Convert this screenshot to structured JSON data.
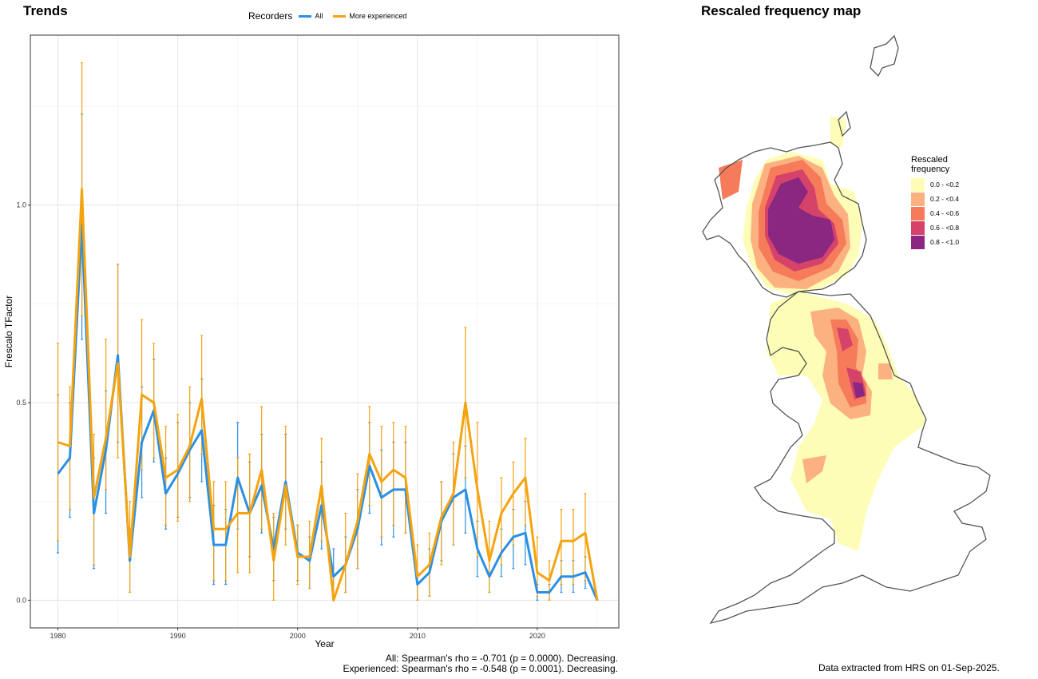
{
  "titles": {
    "trends": "Trends",
    "map": "Rescaled frequency map"
  },
  "legend": {
    "title": "Recorders",
    "items": [
      {
        "label": "All",
        "color": "#2b8fe6"
      },
      {
        "label": "More experienced",
        "color": "#f5a30e"
      }
    ]
  },
  "stats": {
    "all": "All: Spearman's rho = -0.701 (p = 0.0000). Decreasing.",
    "experienced": "Experienced: Spearman's rho = -0.548 (p = 0.0001). Decreasing."
  },
  "source": "Data extracted from HRS on 01-Sep-2025.",
  "chart_data": {
    "type": "line",
    "xlabel": "Year",
    "ylabel": "Frescalo TFactor",
    "xlim": [
      1977.7,
      2026.8
    ],
    "ylim": [
      -0.07,
      1.43
    ],
    "xticks": [
      1980,
      1990,
      2000,
      2010,
      2020
    ],
    "yticks": [
      0.0,
      0.5,
      1.0
    ],
    "ytick_labels": [
      "0.0",
      "0.5",
      "1.0"
    ],
    "grid": true,
    "legend_position": "top",
    "x": [
      1980,
      1981,
      1982,
      1983,
      1984,
      1985,
      1986,
      1987,
      1988,
      1989,
      1990,
      1991,
      1992,
      1993,
      1994,
      1995,
      1996,
      1997,
      1998,
      1999,
      2000,
      2001,
      2002,
      2003,
      2004,
      2005,
      2006,
      2007,
      2008,
      2009,
      2010,
      2011,
      2012,
      2013,
      2014,
      2015,
      2016,
      2017,
      2018,
      2019,
      2020,
      2021,
      2022,
      2023,
      2024,
      2025
    ],
    "series": [
      {
        "name": "All",
        "color": "#2b8fe6",
        "values": [
          0.32,
          0.36,
          0.95,
          0.22,
          0.38,
          0.62,
          0.1,
          0.4,
          0.48,
          0.27,
          0.32,
          0.38,
          0.43,
          0.14,
          0.14,
          0.31,
          0.22,
          0.29,
          0.13,
          0.3,
          0.12,
          0.1,
          0.24,
          0.06,
          0.09,
          0.18,
          0.34,
          0.26,
          0.28,
          0.28,
          0.04,
          0.07,
          0.2,
          0.26,
          0.28,
          0.13,
          0.06,
          0.12,
          0.16,
          0.17,
          0.02,
          0.02,
          0.06,
          0.06,
          0.07,
          0.0
        ],
        "lower": [
          0.12,
          0.21,
          0.66,
          0.08,
          0.22,
          0.4,
          0.02,
          0.26,
          0.35,
          0.18,
          0.21,
          0.26,
          0.3,
          0.04,
          0.04,
          0.18,
          0.11,
          0.17,
          0.05,
          0.18,
          0.05,
          0.03,
          0.13,
          0.01,
          0.02,
          0.08,
          0.22,
          0.14,
          0.16,
          0.17,
          0.0,
          0.01,
          0.1,
          0.14,
          0.17,
          0.06,
          0.02,
          0.06,
          0.08,
          0.09,
          0.0,
          0.0,
          0.02,
          0.02,
          0.03,
          0.0
        ],
        "upper": [
          0.52,
          0.5,
          1.23,
          0.36,
          0.53,
          0.85,
          0.18,
          0.54,
          0.61,
          0.36,
          0.45,
          0.5,
          0.56,
          0.24,
          0.23,
          0.45,
          0.35,
          0.42,
          0.21,
          0.42,
          0.19,
          0.16,
          0.35,
          0.13,
          0.16,
          0.28,
          0.45,
          0.38,
          0.4,
          0.4,
          0.07,
          0.13,
          0.3,
          0.37,
          0.39,
          0.2,
          0.1,
          0.18,
          0.23,
          0.25,
          0.04,
          0.04,
          0.1,
          0.1,
          0.11,
          0.0
        ]
      },
      {
        "name": "More experienced",
        "color": "#f5a30e",
        "values": [
          0.4,
          0.39,
          1.04,
          0.26,
          0.41,
          0.6,
          0.11,
          0.52,
          0.5,
          0.31,
          0.33,
          0.39,
          0.51,
          0.18,
          0.18,
          0.22,
          0.22,
          0.33,
          0.1,
          0.29,
          0.11,
          0.11,
          0.29,
          0.0,
          0.09,
          0.2,
          0.37,
          0.3,
          0.33,
          0.31,
          0.06,
          0.09,
          0.21,
          0.27,
          0.5,
          0.28,
          0.1,
          0.22,
          0.27,
          0.31,
          0.07,
          0.05,
          0.15,
          0.15,
          0.17,
          0.0
        ],
        "lower": [
          0.15,
          0.23,
          0.72,
          0.09,
          0.28,
          0.36,
          0.02,
          0.33,
          0.36,
          0.19,
          0.2,
          0.25,
          0.37,
          0.05,
          0.05,
          0.07,
          0.07,
          0.18,
          0.0,
          0.14,
          0.04,
          0.03,
          0.15,
          0.0,
          0.02,
          0.08,
          0.24,
          0.16,
          0.19,
          0.17,
          0.0,
          0.01,
          0.09,
          0.14,
          0.31,
          0.11,
          0.02,
          0.09,
          0.14,
          0.19,
          0.01,
          0.0,
          0.04,
          0.04,
          0.05,
          0.0
        ],
        "upper": [
          0.65,
          0.54,
          1.36,
          0.42,
          0.66,
          0.85,
          0.25,
          0.71,
          0.65,
          0.44,
          0.47,
          0.54,
          0.67,
          0.3,
          0.3,
          0.36,
          0.37,
          0.49,
          0.22,
          0.44,
          0.19,
          0.2,
          0.41,
          0.08,
          0.22,
          0.32,
          0.49,
          0.44,
          0.45,
          0.44,
          0.14,
          0.17,
          0.3,
          0.4,
          0.69,
          0.45,
          0.2,
          0.31,
          0.35,
          0.41,
          0.16,
          0.1,
          0.23,
          0.23,
          0.27,
          0.0
        ]
      }
    ]
  },
  "map": {
    "legend_title": "Rescaled\nfrequency",
    "classes": [
      {
        "label": "0.0 - <0.2",
        "color": "#fdfdb8"
      },
      {
        "label": "0.2 - <0.4",
        "color": "#fcb180"
      },
      {
        "label": "0.4 - <0.6",
        "color": "#f57b5b"
      },
      {
        "label": "0.6 - <0.8",
        "color": "#d5426a"
      },
      {
        "label": "0.8 - <1.0",
        "color": "#8a2781"
      }
    ],
    "outline_color": "#555555"
  }
}
